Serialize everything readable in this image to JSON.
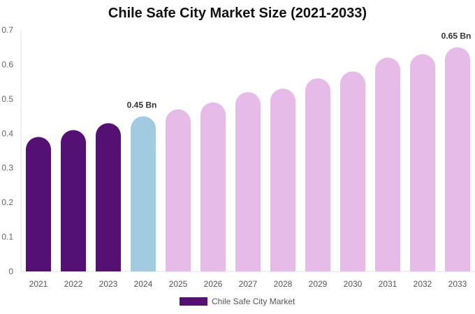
{
  "chart_data": {
    "type": "bar",
    "title": "Chile Safe City Market Size (2021-2033)",
    "categories": [
      "2021",
      "2022",
      "2023",
      "2024",
      "2025",
      "2026",
      "2027",
      "2028",
      "2029",
      "2030",
      "2031",
      "2032",
      "2033"
    ],
    "series": [
      {
        "name": "Chile Safe City Market",
        "values": [
          0.39,
          0.41,
          0.43,
          0.45,
          0.47,
          0.49,
          0.52,
          0.53,
          0.56,
          0.58,
          0.62,
          0.63,
          0.65
        ]
      }
    ],
    "bar_colors": [
      "#541173",
      "#541173",
      "#541173",
      "#a3cbe0",
      "#e6bbe8",
      "#e6bbe8",
      "#e6bbe8",
      "#e6bbe8",
      "#e6bbe8",
      "#e6bbe8",
      "#e6bbe8",
      "#e6bbe8",
      "#e6bbe8"
    ],
    "data_labels": {
      "3": "0.45 Bn",
      "12": "0.65 Bn"
    },
    "ylim": [
      0,
      0.7
    ],
    "yticks": [
      "0",
      "0.1",
      "0.2",
      "0.3",
      "0.4",
      "0.5",
      "0.6",
      "0.7"
    ],
    "grid": false,
    "legend": "bottom",
    "legend_color": "#541173"
  }
}
